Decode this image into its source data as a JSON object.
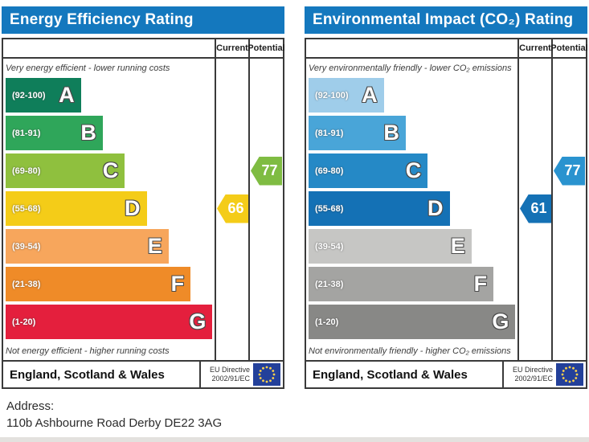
{
  "page": {
    "address_label": "Address:",
    "address_value": "110b Ashbourne Road Derby DE22 3AG"
  },
  "panels": [
    {
      "title": "Energy Efficiency Rating",
      "header_color": "#1478be",
      "columns": {
        "current": "Current",
        "potential": "Potential"
      },
      "top_caption": "Very energy efficient - lower running costs",
      "bottom_caption": "Not energy efficient - higher running costs",
      "bands": [
        {
          "letter": "A",
          "range": "(92-100)",
          "color": "#0f7e5a",
          "width_pct": 36
        },
        {
          "letter": "B",
          "range": "(81-91)",
          "color": "#2fa65a",
          "width_pct": 46.5
        },
        {
          "letter": "C",
          "range": "(69-80)",
          "color": "#8fc03e",
          "width_pct": 57
        },
        {
          "letter": "D",
          "range": "(55-68)",
          "color": "#f4cc18",
          "width_pct": 67.5
        },
        {
          "letter": "E",
          "range": "(39-54)",
          "color": "#f7a65c",
          "width_pct": 78
        },
        {
          "letter": "F",
          "range": "(21-38)",
          "color": "#ef8b28",
          "width_pct": 88.5
        },
        {
          "letter": "G",
          "range": "(1-20)",
          "color": "#e41f3d",
          "width_pct": 99
        }
      ],
      "current": {
        "value": "66",
        "band": "D",
        "band_index": 3,
        "color": "#f4cc18"
      },
      "potential": {
        "value": "77",
        "band": "C",
        "band_index": 2,
        "color": "#7fbc42"
      },
      "footer": {
        "region": "England, Scotland & Wales",
        "directive_line1": "EU Directive",
        "directive_line2": "2002/91/EC"
      }
    },
    {
      "title": "Environmental Impact (CO₂) Rating",
      "header_color": "#1478be",
      "columns": {
        "current": "Current",
        "potential": "Potential"
      },
      "top_caption": "Very environmentally friendly - lower CO₂ emissions",
      "bottom_caption": "Not environmentally friendly - higher CO₂ emissions",
      "bands": [
        {
          "letter": "A",
          "range": "(92-100)",
          "color": "#9fcdea",
          "width_pct": 36
        },
        {
          "letter": "B",
          "range": "(81-91)",
          "color": "#49a5d8",
          "width_pct": 46.5
        },
        {
          "letter": "C",
          "range": "(69-80)",
          "color": "#2589c6",
          "width_pct": 57
        },
        {
          "letter": "D",
          "range": "(55-68)",
          "color": "#1471b5",
          "width_pct": 67.5
        },
        {
          "letter": "E",
          "range": "(39-54)",
          "color": "#c6c6c4",
          "width_pct": 78
        },
        {
          "letter": "F",
          "range": "(21-38)",
          "color": "#a4a4a2",
          "width_pct": 88.5
        },
        {
          "letter": "G",
          "range": "(1-20)",
          "color": "#888886",
          "width_pct": 99
        }
      ],
      "current": {
        "value": "61",
        "band": "D",
        "band_index": 3,
        "color": "#1471b5"
      },
      "potential": {
        "value": "77",
        "band": "C",
        "band_index": 2,
        "color": "#2a93cf"
      },
      "footer": {
        "region": "England, Scotland & Wales",
        "directive_line1": "EU Directive",
        "directive_line2": "2002/91/EC"
      }
    }
  ],
  "eu_flag": {
    "background": "#23409a",
    "star_color": "#ffd24a"
  },
  "chart_data": [
    {
      "type": "bar",
      "orientation": "horizontal",
      "title": "Energy Efficiency Rating",
      "categories": [
        "A",
        "B",
        "C",
        "D",
        "E",
        "F",
        "G"
      ],
      "category_ranges": [
        "92-100",
        "81-91",
        "69-80",
        "55-68",
        "39-54",
        "21-38",
        "1-20"
      ],
      "bar_lengths_pct": [
        36,
        46.5,
        57,
        67.5,
        78,
        88.5,
        99
      ],
      "series": [
        {
          "name": "Current",
          "values": [
            66
          ],
          "band": "D"
        },
        {
          "name": "Potential",
          "values": [
            77
          ],
          "band": "C"
        }
      ],
      "score_range": [
        1,
        100
      ],
      "annotations": [
        "Very energy efficient - lower running costs",
        "Not energy efficient - higher running costs"
      ],
      "footer": "England, Scotland & Wales — EU Directive 2002/91/EC"
    },
    {
      "type": "bar",
      "orientation": "horizontal",
      "title": "Environmental Impact (CO₂) Rating",
      "categories": [
        "A",
        "B",
        "C",
        "D",
        "E",
        "F",
        "G"
      ],
      "category_ranges": [
        "92-100",
        "81-91",
        "69-80",
        "55-68",
        "39-54",
        "21-38",
        "1-20"
      ],
      "bar_lengths_pct": [
        36,
        46.5,
        57,
        67.5,
        78,
        88.5,
        99
      ],
      "series": [
        {
          "name": "Current",
          "values": [
            61
          ],
          "band": "D"
        },
        {
          "name": "Potential",
          "values": [
            77
          ],
          "band": "C"
        }
      ],
      "score_range": [
        1,
        100
      ],
      "annotations": [
        "Very environmentally friendly - lower CO₂ emissions",
        "Not environmentally friendly - higher CO₂ emissions"
      ],
      "footer": "England, Scotland & Wales — EU Directive 2002/91/EC"
    }
  ]
}
